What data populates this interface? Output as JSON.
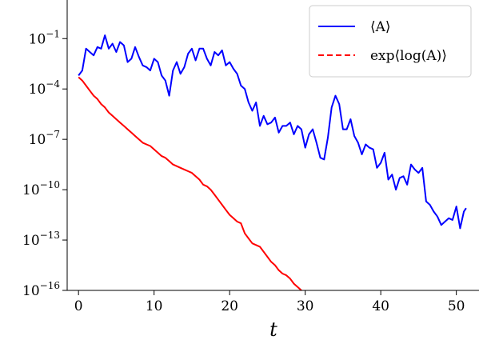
{
  "chart_data": {
    "type": "line",
    "xlabel": "t",
    "ylabel": "",
    "xlim": [
      -1.5,
      53
    ],
    "ylim_log10": [
      -16,
      1.3
    ],
    "yscale": "log",
    "grid": false,
    "legend_position": "top-right",
    "x_ticks": [
      {
        "value": 0,
        "label": "0"
      },
      {
        "value": 10,
        "label": "10"
      },
      {
        "value": 20,
        "label": "20"
      },
      {
        "value": 30,
        "label": "30"
      },
      {
        "value": 40,
        "label": "40"
      },
      {
        "value": 50,
        "label": "50"
      }
    ],
    "y_ticks": [
      {
        "log10": -1,
        "base": "10",
        "exp": "−1"
      },
      {
        "log10": -4,
        "base": "10",
        "exp": "−4"
      },
      {
        "log10": -7,
        "base": "10",
        "exp": "−7"
      },
      {
        "log10": -10,
        "base": "10",
        "exp": "−10"
      },
      {
        "log10": -13,
        "base": "10",
        "exp": "−13"
      },
      {
        "log10": -16,
        "base": "10",
        "exp": "−16"
      }
    ],
    "series": [
      {
        "name": "⟨A⟩",
        "color": "#0000ff",
        "style": "solid",
        "x": [
          0,
          0.5,
          1,
          1.5,
          2,
          2.5,
          3,
          3.5,
          4,
          4.5,
          5,
          5.5,
          6,
          6.5,
          7,
          7.5,
          8,
          8.5,
          9,
          9.5,
          10,
          10.5,
          11,
          11.5,
          12,
          12.5,
          13,
          13.5,
          14,
          14.5,
          15,
          15.5,
          16,
          16.5,
          17,
          17.5,
          18,
          18.5,
          19,
          19.5,
          20,
          20.5,
          21,
          21.5,
          22,
          22.5,
          23,
          23.5,
          24,
          24.5,
          25,
          25.5,
          26,
          26.5,
          27,
          27.5,
          28,
          28.5,
          29,
          29.5,
          30,
          30.5,
          31,
          31.5,
          32,
          32.5,
          33,
          33.5,
          34,
          34.5,
          35,
          35.5,
          36,
          36.5,
          37,
          37.5,
          38,
          38.5,
          39,
          39.5,
          40,
          40.5,
          41,
          41.5,
          42,
          42.5,
          43,
          43.5,
          44,
          44.5,
          45,
          45.5,
          46,
          46.5,
          47,
          47.5,
          48,
          48.5,
          49,
          49.5,
          50,
          50.5,
          51,
          51.3
        ],
        "log10_y": [
          -3.2,
          -2.9,
          -1.6,
          -1.8,
          -2.0,
          -1.5,
          -1.6,
          -0.8,
          -1.6,
          -1.3,
          -1.8,
          -1.2,
          -1.4,
          -2.4,
          -2.2,
          -1.5,
          -2.1,
          -2.6,
          -2.7,
          -2.9,
          -2.2,
          -2.4,
          -3.2,
          -3.5,
          -4.4,
          -2.9,
          -2.4,
          -3.1,
          -2.7,
          -1.9,
          -1.6,
          -2.3,
          -1.6,
          -1.6,
          -2.2,
          -2.6,
          -1.8,
          -2.0,
          -1.7,
          -2.6,
          -2.4,
          -2.8,
          -3.1,
          -3.8,
          -4.0,
          -4.8,
          -5.3,
          -4.8,
          -6.2,
          -5.6,
          -6.1,
          -6.0,
          -5.7,
          -6.6,
          -6.2,
          -6.2,
          -6.0,
          -6.7,
          -6.2,
          -6.4,
          -7.5,
          -6.7,
          -6.4,
          -7.2,
          -8.1,
          -8.2,
          -6.9,
          -5.1,
          -4.4,
          -4.9,
          -6.4,
          -6.4,
          -5.8,
          -6.8,
          -7.2,
          -7.9,
          -7.3,
          -7.5,
          -7.6,
          -8.7,
          -8.4,
          -7.8,
          -9.4,
          -9.1,
          -10.0,
          -9.3,
          -9.2,
          -9.7,
          -8.5,
          -8.8,
          -9.0,
          -8.7,
          -10.7,
          -10.9,
          -11.3,
          -11.6,
          -12.1,
          -11.9,
          -11.7,
          -11.8,
          -11.0,
          -12.3,
          -11.3,
          -11.1,
          -10.1,
          -11.8
        ]
      },
      {
        "name": "exp⟨log(A)⟩",
        "color": "#ff0000",
        "style": "dashed",
        "x": [
          0,
          0.5,
          1,
          1.5,
          2,
          2.5,
          3,
          3.5,
          4,
          4.5,
          5,
          5.5,
          6,
          6.5,
          7,
          7.5,
          8,
          8.5,
          9,
          9.5,
          10,
          10.5,
          11,
          11.5,
          12,
          12.5,
          13,
          13.5,
          14,
          14.5,
          15,
          15.5,
          16,
          16.5,
          17,
          17.5,
          18,
          18.5,
          19,
          19.5,
          20,
          20.5,
          21,
          21.5,
          22,
          22.5,
          23,
          23.5,
          24,
          24.5,
          25,
          25.5,
          26,
          26.5,
          27,
          27.5,
          28,
          28.5,
          29,
          29.5,
          30
        ],
        "log10_y": [
          -3.3,
          -3.5,
          -3.8,
          -4.1,
          -4.4,
          -4.6,
          -4.9,
          -5.1,
          -5.4,
          -5.6,
          -5.8,
          -6.0,
          -6.2,
          -6.4,
          -6.6,
          -6.8,
          -7.0,
          -7.2,
          -7.3,
          -7.4,
          -7.6,
          -7.8,
          -8.0,
          -8.1,
          -8.3,
          -8.5,
          -8.6,
          -8.7,
          -8.8,
          -8.9,
          -9.0,
          -9.2,
          -9.4,
          -9.7,
          -9.8,
          -10.0,
          -10.3,
          -10.6,
          -10.9,
          -11.2,
          -11.5,
          -11.7,
          -11.9,
          -12.0,
          -12.6,
          -12.9,
          -13.2,
          -13.3,
          -13.4,
          -13.7,
          -14.0,
          -14.3,
          -14.5,
          -14.8,
          -15.0,
          -15.1,
          -15.3,
          -15.6,
          -15.8,
          -16.0,
          -16.3
        ]
      }
    ],
    "legend": [
      {
        "label": "⟨A⟩",
        "color": "#0000ff",
        "style": "solid"
      },
      {
        "label": "exp⟨log(A)⟩",
        "color": "#ff0000",
        "style": "dashed"
      }
    ]
  }
}
